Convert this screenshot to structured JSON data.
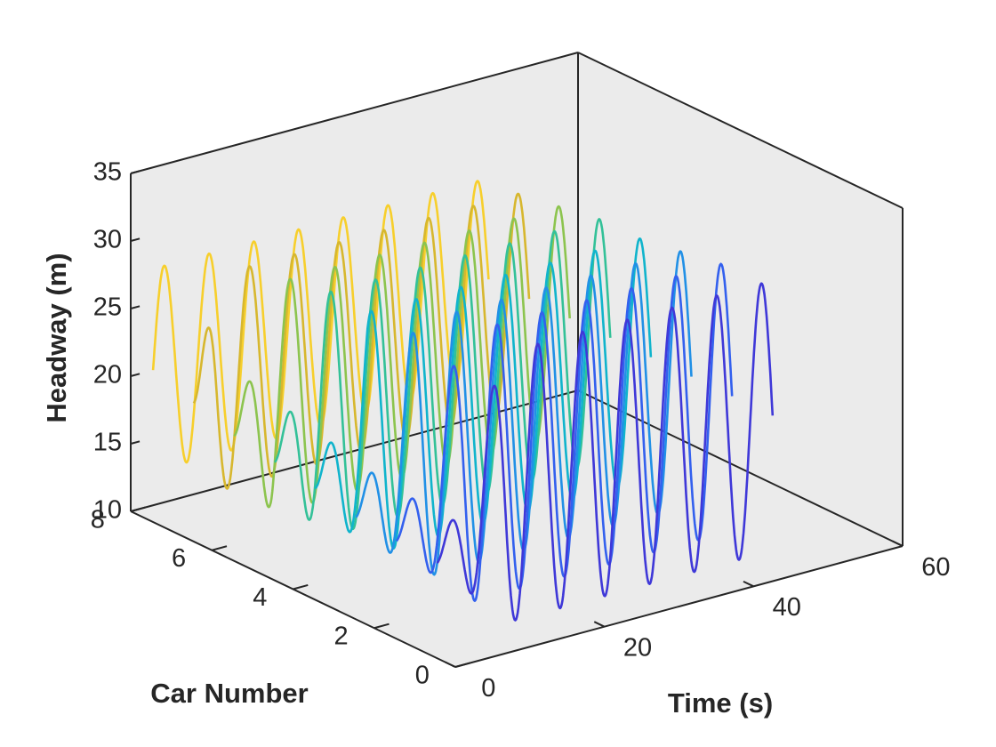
{
  "chart_data": {
    "type": "line",
    "title": "",
    "xlabel": "Time (s)",
    "ylabel": "Car Number",
    "zlabel": "Headway (m)",
    "xlim": [
      0,
      60
    ],
    "ylim": [
      0,
      8
    ],
    "zlim": [
      10,
      35
    ],
    "xticks": [
      "0",
      "20",
      "40",
      "60"
    ],
    "yticks": [
      "0",
      "2",
      "4",
      "6",
      "8"
    ],
    "zticks": [
      "10",
      "15",
      "20",
      "25",
      "30",
      "35"
    ],
    "grid": false,
    "legend": "none",
    "colormap": "parula",
    "series": [
      {
        "car": 1,
        "color": "#3F38D8",
        "t_start": 3,
        "t_end": 48,
        "mean": 20,
        "amp_final": 10,
        "ramp_end": 12,
        "period": 6,
        "start_value": 15.8
      },
      {
        "car": 2,
        "color": "#3360EE",
        "t_start": 3,
        "t_end": 48,
        "mean": 20,
        "amp_final": 10,
        "ramp_end": 12,
        "period": 6,
        "start_value": 16.0
      },
      {
        "car": 3,
        "color": "#2190E6",
        "t_start": 3,
        "t_end": 48,
        "mean": 20,
        "amp_final": 9.5,
        "ramp_end": 11,
        "period": 6,
        "start_value": 16.3
      },
      {
        "car": 4,
        "color": "#10B4CC",
        "t_start": 3,
        "t_end": 48,
        "mean": 20,
        "amp_final": 9,
        "ramp_end": 10,
        "period": 6,
        "start_value": 17.0
      },
      {
        "car": 5,
        "color": "#33C198",
        "t_start": 3,
        "t_end": 48,
        "mean": 20,
        "amp_final": 9,
        "ramp_end": 9,
        "period": 6,
        "start_value": 17.5
      },
      {
        "car": 6,
        "color": "#8CC44E",
        "t_start": 3,
        "t_end": 48,
        "mean": 20,
        "amp_final": 8.5,
        "ramp_end": 8,
        "period": 6,
        "start_value": 18.0
      },
      {
        "car": 7,
        "color": "#D7B72E",
        "t_start": 3,
        "t_end": 48,
        "mean": 20,
        "amp_final": 8,
        "ramp_end": 6,
        "period": 6,
        "start_value": 19.0
      },
      {
        "car": 8,
        "color": "#F7CF2C",
        "t_start": 3,
        "t_end": 48,
        "mean": 20,
        "amp_final": 7.5,
        "ramp_end": 3,
        "period": 6,
        "start_value": 20.0
      }
    ]
  }
}
